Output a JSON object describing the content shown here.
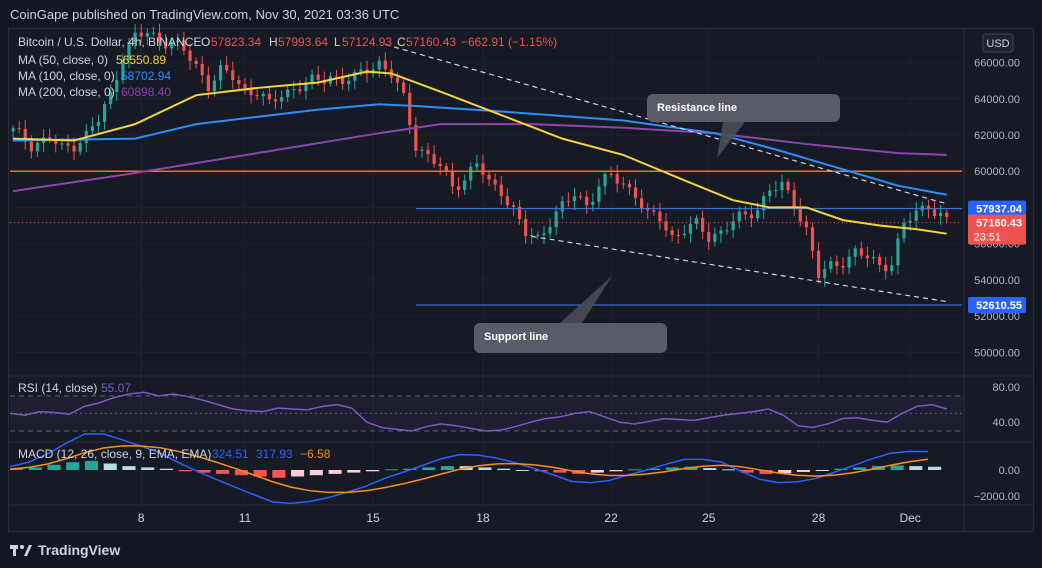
{
  "header": {
    "published": "CoinGape published on TradingView.com, Nov 30, 2021 03:36 UTC"
  },
  "footer": {
    "brand": "TradingView",
    "logo_icon": "tradingview-logo-icon"
  },
  "legend": {
    "title": "Bitcoin / U.S. Dollar, 4h, BINANCE",
    "o_label": "O",
    "o_value": "57823.34",
    "h_label": "H",
    "h_value": "57993.64",
    "l_label": "L",
    "l_value": "57124.93",
    "c_label": "C",
    "c_value": "57160.43",
    "change": "−662.91 (−1.15%)",
    "ma50": {
      "label": "MA (50, close, 0)",
      "value": "56550.89"
    },
    "ma100": {
      "label": "MA (100, close, 0)",
      "value": "58702.94"
    },
    "ma200": {
      "label": "MA (200, close, 0)",
      "value": "60898.40"
    }
  },
  "currency_button": "USD",
  "price_badges": {
    "level_high": "57937.04",
    "last": "57160.43",
    "countdown": "23:51",
    "level_low": "52610.55"
  },
  "annotations": {
    "resistance": "Resistance line",
    "support": "Support line"
  },
  "rsi": {
    "label": "RSI (14, close)",
    "value": "55.07",
    "ticks": [
      "80.00",
      "40.00"
    ]
  },
  "macd": {
    "label": "MACD (12, 26, close, 9, EMA, EMA)",
    "v1": "324.51",
    "v2": "317.93",
    "v3": "−6.58",
    "ticks": [
      "0.00",
      "−2000.00"
    ]
  },
  "colors": {
    "up": "#26a69a",
    "down": "#ef5350",
    "ma50": "#f5d33b",
    "ma100": "#2c8ef8",
    "ma200": "#8e44ad",
    "rsi": "#7e57c2",
    "macd": "#2962ff",
    "signal": "#ff8c1a",
    "hline": "#3d7bf5",
    "orangeline": "#ef6c3b"
  },
  "chart_data": {
    "type": "candlestick",
    "interval": "4h",
    "x_tick_labels": [
      "8",
      "11",
      "15",
      "18",
      "22",
      "25",
      "28",
      "Dec"
    ],
    "y_tick_labels": [
      "66000.00",
      "64000.00",
      "62000.00",
      "60000.00",
      "58000.00",
      "56000.00",
      "54000.00",
      "52000.00",
      "50000.00"
    ],
    "ylim": [
      48800,
      67800
    ],
    "horizontal_levels": [
      60000,
      57937.04,
      52610.55
    ],
    "last_price_level": 57160.43,
    "close_path": [
      {
        "x": 0,
        "y": 62200
      },
      {
        "x": 3,
        "y": 61500
      },
      {
        "x": 6,
        "y": 61800
      },
      {
        "x": 8,
        "y": 61200
      },
      {
        "x": 10,
        "y": 61500
      },
      {
        "x": 12,
        "y": 62000
      },
      {
        "x": 14,
        "y": 62800
      },
      {
        "x": 16,
        "y": 64200
      },
      {
        "x": 18,
        "y": 66500
      },
      {
        "x": 20,
        "y": 67400
      },
      {
        "x": 22,
        "y": 67600
      },
      {
        "x": 24,
        "y": 67300
      },
      {
        "x": 26,
        "y": 67100
      },
      {
        "x": 28,
        "y": 66600
      },
      {
        "x": 30,
        "y": 65800
      },
      {
        "x": 32,
        "y": 64800
      },
      {
        "x": 34,
        "y": 65500
      },
      {
        "x": 36,
        "y": 65200
      },
      {
        "x": 38,
        "y": 64500
      },
      {
        "x": 40,
        "y": 64400
      },
      {
        "x": 42,
        "y": 63600
      },
      {
        "x": 44,
        "y": 64300
      },
      {
        "x": 46,
        "y": 64600
      },
      {
        "x": 48,
        "y": 64800
      },
      {
        "x": 50,
        "y": 65000
      },
      {
        "x": 52,
        "y": 65300
      },
      {
        "x": 54,
        "y": 65000
      },
      {
        "x": 56,
        "y": 65100
      },
      {
        "x": 58,
        "y": 65700
      },
      {
        "x": 60,
        "y": 66000
      },
      {
        "x": 62,
        "y": 65300
      },
      {
        "x": 64,
        "y": 64000
      },
      {
        "x": 66,
        "y": 61500
      },
      {
        "x": 68,
        "y": 60800
      },
      {
        "x": 70,
        "y": 60200
      },
      {
        "x": 72,
        "y": 59200
      },
      {
        "x": 74,
        "y": 59600
      },
      {
        "x": 76,
        "y": 60400
      },
      {
        "x": 78,
        "y": 59300
      },
      {
        "x": 80,
        "y": 59000
      },
      {
        "x": 82,
        "y": 57800
      },
      {
        "x": 84,
        "y": 56500
      },
      {
        "x": 86,
        "y": 56300
      },
      {
        "x": 88,
        "y": 57300
      },
      {
        "x": 90,
        "y": 58000
      },
      {
        "x": 92,
        "y": 58700
      },
      {
        "x": 94,
        "y": 58200
      },
      {
        "x": 96,
        "y": 59200
      },
      {
        "x": 98,
        "y": 59700
      },
      {
        "x": 100,
        "y": 59300
      },
      {
        "x": 102,
        "y": 58800
      },
      {
        "x": 104,
        "y": 57500
      },
      {
        "x": 106,
        "y": 57400
      },
      {
        "x": 108,
        "y": 56400
      },
      {
        "x": 110,
        "y": 56800
      },
      {
        "x": 112,
        "y": 57000
      },
      {
        "x": 114,
        "y": 56400
      },
      {
        "x": 116,
        "y": 56700
      },
      {
        "x": 118,
        "y": 57200
      },
      {
        "x": 120,
        "y": 57500
      },
      {
        "x": 122,
        "y": 58000
      },
      {
        "x": 124,
        "y": 59000
      },
      {
        "x": 126,
        "y": 59100
      },
      {
        "x": 128,
        "y": 58300
      },
      {
        "x": 130,
        "y": 56800
      },
      {
        "x": 132,
        "y": 54200
      },
      {
        "x": 134,
        "y": 54700
      },
      {
        "x": 136,
        "y": 55100
      },
      {
        "x": 138,
        "y": 55500
      },
      {
        "x": 140,
        "y": 55200
      },
      {
        "x": 142,
        "y": 54800
      },
      {
        "x": 144,
        "y": 55000
      },
      {
        "x": 146,
        "y": 57000
      },
      {
        "x": 148,
        "y": 57700
      },
      {
        "x": 150,
        "y": 58200
      },
      {
        "x": 152,
        "y": 57500
      },
      {
        "x": 153,
        "y": 57160
      }
    ],
    "ma50_path": [
      {
        "x": 0,
        "y": 61800
      },
      {
        "x": 10,
        "y": 61700
      },
      {
        "x": 20,
        "y": 62600
      },
      {
        "x": 30,
        "y": 64200
      },
      {
        "x": 40,
        "y": 64600
      },
      {
        "x": 50,
        "y": 64900
      },
      {
        "x": 58,
        "y": 65500
      },
      {
        "x": 62,
        "y": 65400
      },
      {
        "x": 70,
        "y": 64400
      },
      {
        "x": 80,
        "y": 63100
      },
      {
        "x": 90,
        "y": 61800
      },
      {
        "x": 100,
        "y": 60900
      },
      {
        "x": 110,
        "y": 59500
      },
      {
        "x": 118,
        "y": 58400
      },
      {
        "x": 124,
        "y": 58000
      },
      {
        "x": 130,
        "y": 58000
      },
      {
        "x": 136,
        "y": 57300
      },
      {
        "x": 142,
        "y": 57000
      },
      {
        "x": 148,
        "y": 56800
      },
      {
        "x": 153,
        "y": 56550
      }
    ],
    "ma100_path": [
      {
        "x": 0,
        "y": 61700
      },
      {
        "x": 20,
        "y": 61800
      },
      {
        "x": 30,
        "y": 62600
      },
      {
        "x": 40,
        "y": 63000
      },
      {
        "x": 50,
        "y": 63400
      },
      {
        "x": 60,
        "y": 63700
      },
      {
        "x": 66,
        "y": 63600
      },
      {
        "x": 80,
        "y": 63300
      },
      {
        "x": 100,
        "y": 62800
      },
      {
        "x": 115,
        "y": 62100
      },
      {
        "x": 125,
        "y": 61200
      },
      {
        "x": 135,
        "y": 60200
      },
      {
        "x": 145,
        "y": 59200
      },
      {
        "x": 153,
        "y": 58700
      }
    ],
    "ma200_path": [
      {
        "x": 0,
        "y": 58900
      },
      {
        "x": 20,
        "y": 59900
      },
      {
        "x": 40,
        "y": 61000
      },
      {
        "x": 60,
        "y": 62100
      },
      {
        "x": 70,
        "y": 62600
      },
      {
        "x": 85,
        "y": 62600
      },
      {
        "x": 100,
        "y": 62400
      },
      {
        "x": 115,
        "y": 62100
      },
      {
        "x": 130,
        "y": 61500
      },
      {
        "x": 145,
        "y": 61000
      },
      {
        "x": 153,
        "y": 60900
      }
    ],
    "resistance_line": [
      {
        "x": 61,
        "y": 67000
      },
      {
        "x": 153,
        "y": 58200
      }
    ],
    "support_line": [
      {
        "x": 85,
        "y": 56400
      },
      {
        "x": 153,
        "y": 52800
      }
    ],
    "rsi_path": [
      50,
      48,
      52,
      51,
      49,
      58,
      62,
      68,
      72,
      74,
      70,
      72,
      69,
      65,
      60,
      55,
      53,
      52,
      56,
      55,
      54,
      58,
      60,
      56,
      40,
      34,
      32,
      30,
      35,
      38,
      36,
      33,
      30,
      31,
      35,
      40,
      44,
      46,
      50,
      52,
      46,
      40,
      38,
      41,
      44,
      43,
      42,
      45,
      48,
      50,
      52,
      55,
      48,
      36,
      34,
      38,
      44,
      45,
      42,
      40,
      50,
      58,
      60,
      55
    ],
    "macd_hist": [
      120,
      200,
      400,
      600,
      700,
      500,
      300,
      200,
      100,
      -100,
      -200,
      -300,
      -400,
      -500,
      -600,
      -500,
      -400,
      -300,
      -200,
      -100,
      50,
      100,
      200,
      300,
      300,
      200,
      100,
      0,
      -100,
      -200,
      -300,
      -200,
      -100,
      50,
      100,
      200,
      250,
      150,
      50,
      -200,
      -300,
      -250,
      -150,
      -50,
      100,
      200,
      300,
      350,
      300,
      250
    ]
  }
}
